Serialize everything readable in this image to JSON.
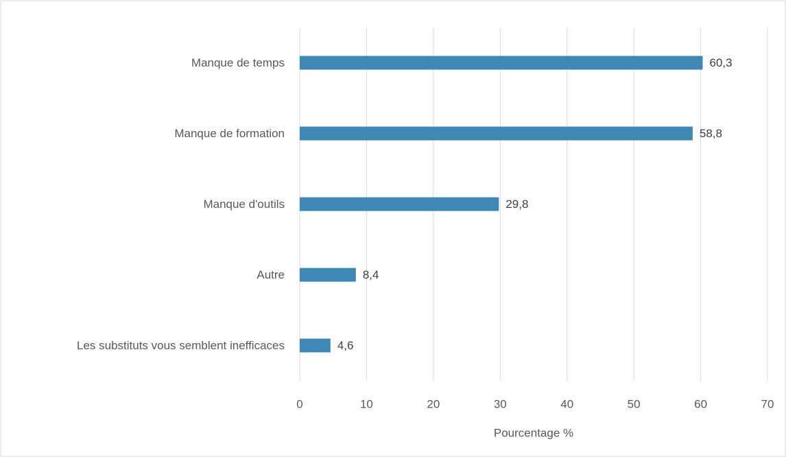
{
  "chart_data": {
    "type": "bar",
    "orientation": "horizontal",
    "categories": [
      "Manque de temps",
      "Manque de formation",
      "Manque d'outils",
      "Autre",
      "Les substituts vous semblent inefficaces"
    ],
    "values": [
      60.3,
      58.8,
      29.8,
      8.4,
      4.6
    ],
    "value_labels": [
      "60,3",
      "58,8",
      "29,8",
      "8,4",
      "4,6"
    ],
    "color": "#3f88b6",
    "xlim": [
      0,
      70
    ],
    "xticks": [
      0,
      10,
      20,
      30,
      40,
      50,
      60,
      70
    ],
    "x_label": "Pourcentage %",
    "grid": true
  }
}
